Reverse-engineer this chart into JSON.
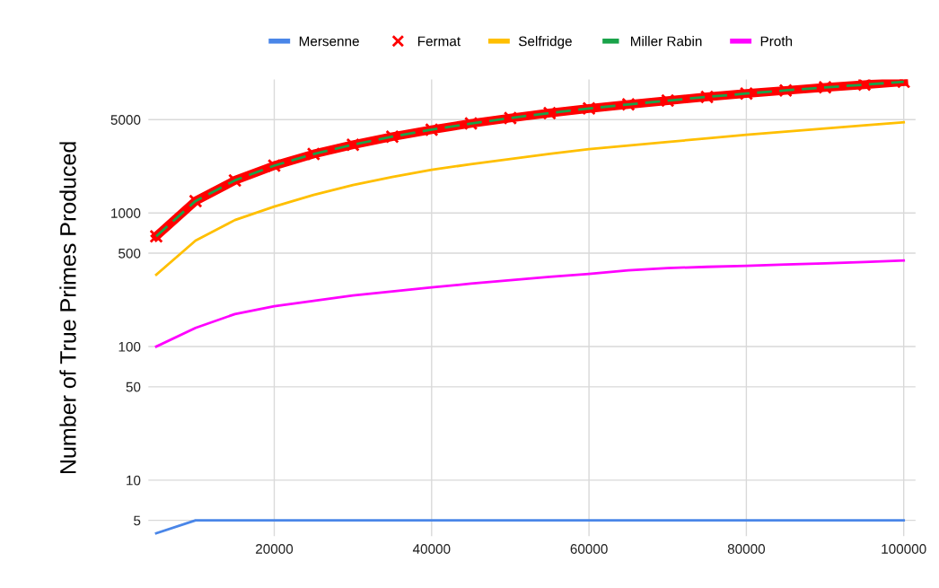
{
  "chart_data": {
    "type": "line",
    "ylabel": "Number of True Primes Produced",
    "log": "y",
    "grid": true,
    "legend": "top",
    "x": [
      5000,
      10000,
      15000,
      20000,
      25000,
      30000,
      35000,
      40000,
      45000,
      50000,
      55000,
      60000,
      65000,
      70000,
      75000,
      80000,
      85000,
      90000,
      95000,
      100000
    ],
    "xlim": [
      4000,
      101500
    ],
    "xticks": [
      20000,
      40000,
      60000,
      80000,
      100000
    ],
    "ylim": [
      3.8,
      10000
    ],
    "yticks": [
      5,
      10,
      50,
      100,
      500,
      1000,
      5000
    ],
    "series": [
      {
        "name": "Mersenne",
        "color": "#4a86e8",
        "values": [
          4,
          5,
          5,
          5,
          5,
          5,
          5,
          5,
          5,
          5,
          5,
          5,
          5,
          5,
          5,
          5,
          5,
          5,
          5,
          5
        ]
      },
      {
        "name": "Fermat",
        "color": "#ff0000",
        "marker": "cross",
        "values": [
          669,
          1229,
          1754,
          2262,
          2762,
          3245,
          3728,
          4203,
          4675,
          5133,
          5598,
          6057,
          6493,
          6935,
          7393,
          7837,
          8266,
          8713,
          9127,
          9592
        ]
      },
      {
        "name": "Selfridge",
        "color": "#ffbf00",
        "values": [
          345,
          621,
          885,
          1117,
          1365,
          1618,
          1859,
          2103,
          2320,
          2535,
          2770,
          3005,
          3200,
          3400,
          3620,
          3850,
          4070,
          4285,
          4530,
          4775
        ]
      },
      {
        "name": "Miller Rabin",
        "color": "#1aa34a",
        "line_style": "dashed",
        "values": [
          669,
          1229,
          1754,
          2262,
          2762,
          3245,
          3728,
          4203,
          4675,
          5133,
          5598,
          6057,
          6493,
          6935,
          7393,
          7837,
          8266,
          8713,
          9127,
          9592
        ]
      },
      {
        "name": "Proth",
        "color": "#ff00ff",
        "values": [
          100,
          138,
          175,
          200,
          220,
          241,
          259,
          277,
          296,
          314,
          332,
          350,
          372,
          387,
          395,
          402,
          411,
          420,
          430,
          441
        ]
      }
    ]
  }
}
